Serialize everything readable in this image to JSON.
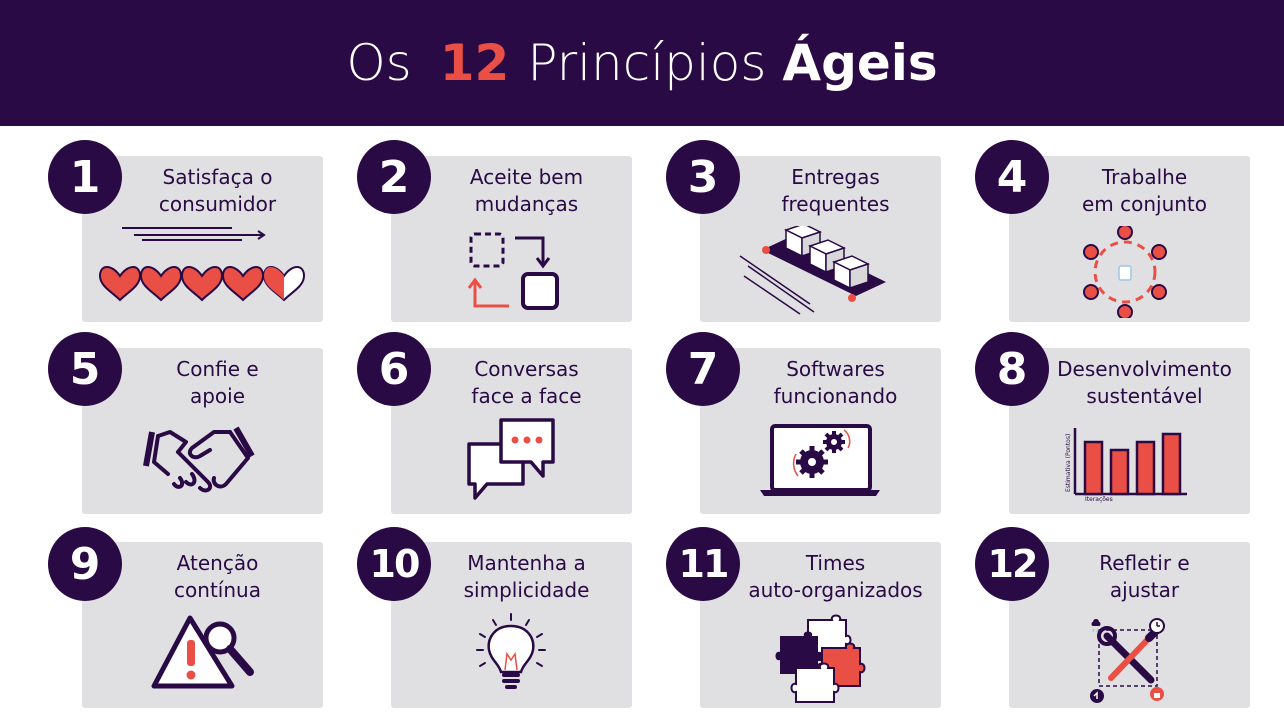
{
  "title": {
    "os": "Os",
    "number": "12",
    "principios": "Princípios",
    "ageis": "Ágeis"
  },
  "colors": {
    "primary": "#2a0a45",
    "accent": "#ea4f45",
    "card": "#e0e0e2"
  },
  "principles": [
    {
      "number": "1",
      "line1": "Satisfaça o",
      "line2": "consumidor",
      "icon": "hearts-rating-icon"
    },
    {
      "number": "2",
      "line1": "Aceite bem",
      "line2": "mudanças",
      "icon": "change-arrows-icon"
    },
    {
      "number": "3",
      "line1": "Entregas",
      "line2": "frequentes",
      "icon": "conveyor-boxes-icon"
    },
    {
      "number": "4",
      "line1": "Trabalhe",
      "line2": "em conjunto",
      "icon": "team-table-icon"
    },
    {
      "number": "5",
      "line1": "Confie e",
      "line2": "apoie",
      "icon": "handshake-icon"
    },
    {
      "number": "6",
      "line1": "Conversas",
      "line2": "face a face",
      "icon": "chat-bubbles-icon"
    },
    {
      "number": "7",
      "line1": "Softwares",
      "line2": "funcionando",
      "icon": "laptop-gears-icon"
    },
    {
      "number": "8",
      "line1": "Desenvolvimento",
      "line2": "sustentável",
      "icon": "bar-chart-icon",
      "chart": {
        "ylabel": "Estimativa (Pontos)",
        "xlabel": "Iterações"
      }
    },
    {
      "number": "9",
      "line1": "Atenção",
      "line2": "contínua",
      "icon": "warning-magnifier-icon"
    },
    {
      "number": "10",
      "line1": "Mantenha a",
      "line2": "simplicidade",
      "icon": "lightbulb-icon"
    },
    {
      "number": "11",
      "line1": "Times",
      "line2": "auto-organizados",
      "icon": "puzzle-icon"
    },
    {
      "number": "12",
      "line1": "Refletir e",
      "line2": "ajustar",
      "icon": "tools-icon"
    }
  ]
}
